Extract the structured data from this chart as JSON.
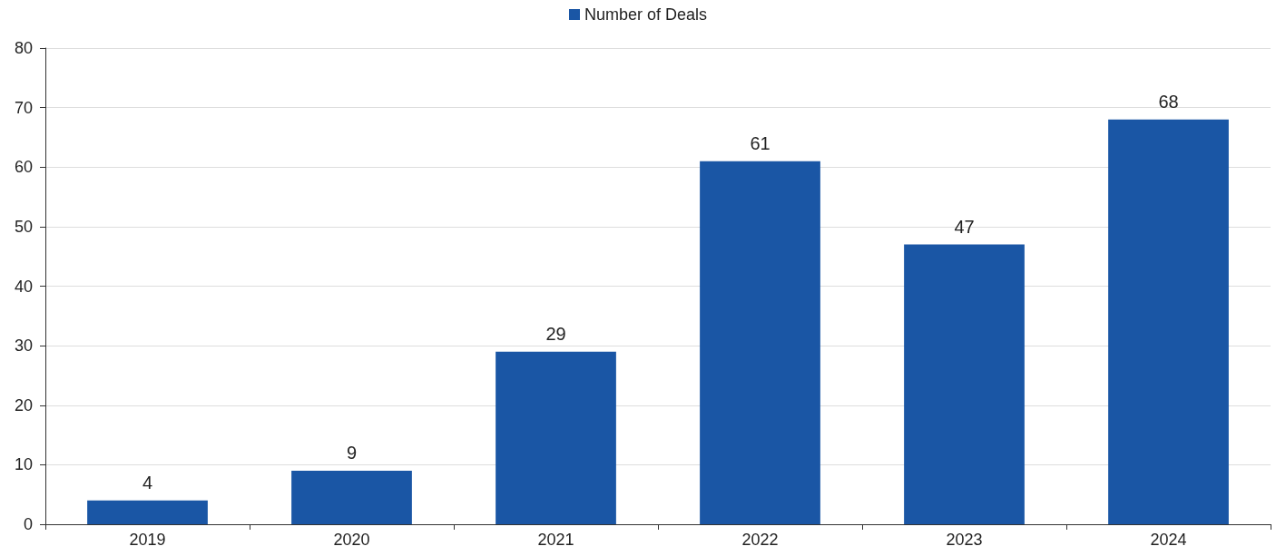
{
  "chart_data": {
    "type": "bar",
    "categories": [
      "2019",
      "2020",
      "2021",
      "2022",
      "2023",
      "2024"
    ],
    "series": [
      {
        "name": "Number of Deals",
        "color": "#1a56a5",
        "values": [
          4,
          9,
          29,
          61,
          47,
          68
        ]
      }
    ],
    "ylim": [
      0,
      80
    ],
    "yticks": [
      0,
      10,
      20,
      30,
      40,
      50,
      60,
      70,
      80
    ],
    "grid": "y",
    "legend": "top",
    "data_labels": true
  }
}
